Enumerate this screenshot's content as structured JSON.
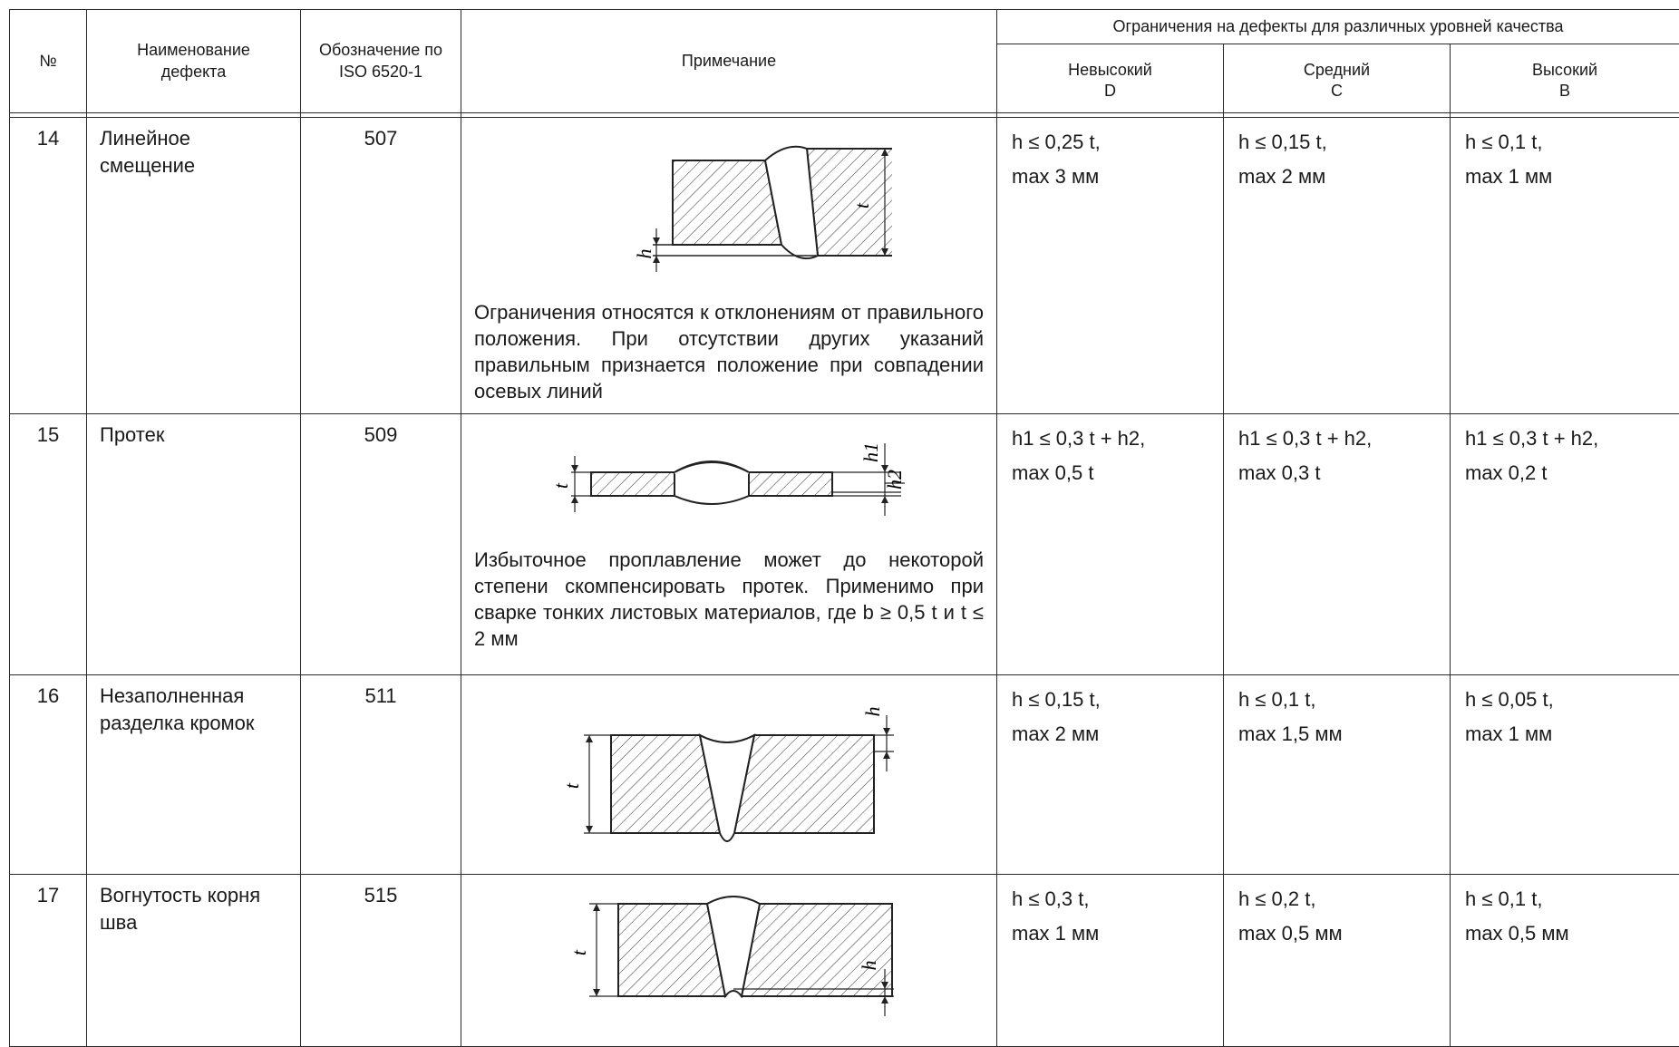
{
  "header": {
    "col_no": "№",
    "col_name": "Наименование дефекта",
    "col_code": "Обозначение по ISO 6520-1",
    "col_note": "Примечание",
    "col_limits_group": "Ограничения на дефекты для различных уровней качества",
    "levels": [
      {
        "name": "Невысокий",
        "code": "D"
      },
      {
        "name": "Средний",
        "code": "C"
      },
      {
        "name": "Высокий",
        "code": "B"
      }
    ]
  },
  "rows": [
    {
      "no": "14",
      "name": "Линейное смещение",
      "code": "507",
      "figure_labels": [
        "h",
        "t"
      ],
      "note": "Ограничения относятся к отклонениям от правильного положения. При отсутствии других указаний правильным признается положение при совпадении осевых линий",
      "limits": [
        {
          "line1": "h ≤ 0,25 t,",
          "line2": "max 3 мм"
        },
        {
          "line1": "h ≤ 0,15 t,",
          "line2": "max 2 мм"
        },
        {
          "line1": "h ≤ 0,1 t,",
          "line2": "max 1 мм"
        }
      ]
    },
    {
      "no": "15",
      "name": "Протек",
      "code": "509",
      "figure_labels": [
        "t",
        "h1",
        "h2"
      ],
      "note": "Избыточное проплавление может до некоторой степени скомпенсировать протек. Применимо при сварке тонких листовых материалов, где b ≥ 0,5 t и t ≤ 2 мм",
      "limits": [
        {
          "line1": "h1 ≤ 0,3 t + h2,",
          "line2": "max 0,5 t"
        },
        {
          "line1": "h1 ≤ 0,3 t + h2,",
          "line2": "max 0,3 t"
        },
        {
          "line1": "h1 ≤ 0,3 t + h2,",
          "line2": "max 0,2 t"
        }
      ]
    },
    {
      "no": "16",
      "name": "Незаполненная разделка кромок",
      "code": "511",
      "figure_labels": [
        "t",
        "h"
      ],
      "note": "",
      "limits": [
        {
          "line1": "h ≤ 0,15 t,",
          "line2": "max 2 мм"
        },
        {
          "line1": "h ≤ 0,1 t,",
          "line2": "max 1,5 мм"
        },
        {
          "line1": "h ≤ 0,05 t,",
          "line2": "max 1 мм"
        }
      ]
    },
    {
      "no": "17",
      "name": "Вогнутость корня шва",
      "code": "515",
      "figure_labels": [
        "t",
        "h"
      ],
      "note": "",
      "limits": [
        {
          "line1": "h ≤ 0,3 t,",
          "line2": "max 1 мм"
        },
        {
          "line1": "h ≤ 0,2 t,",
          "line2": "max 0,5 мм"
        },
        {
          "line1": "h ≤ 0,1 t,",
          "line2": "max 0,5 мм"
        }
      ]
    }
  ]
}
